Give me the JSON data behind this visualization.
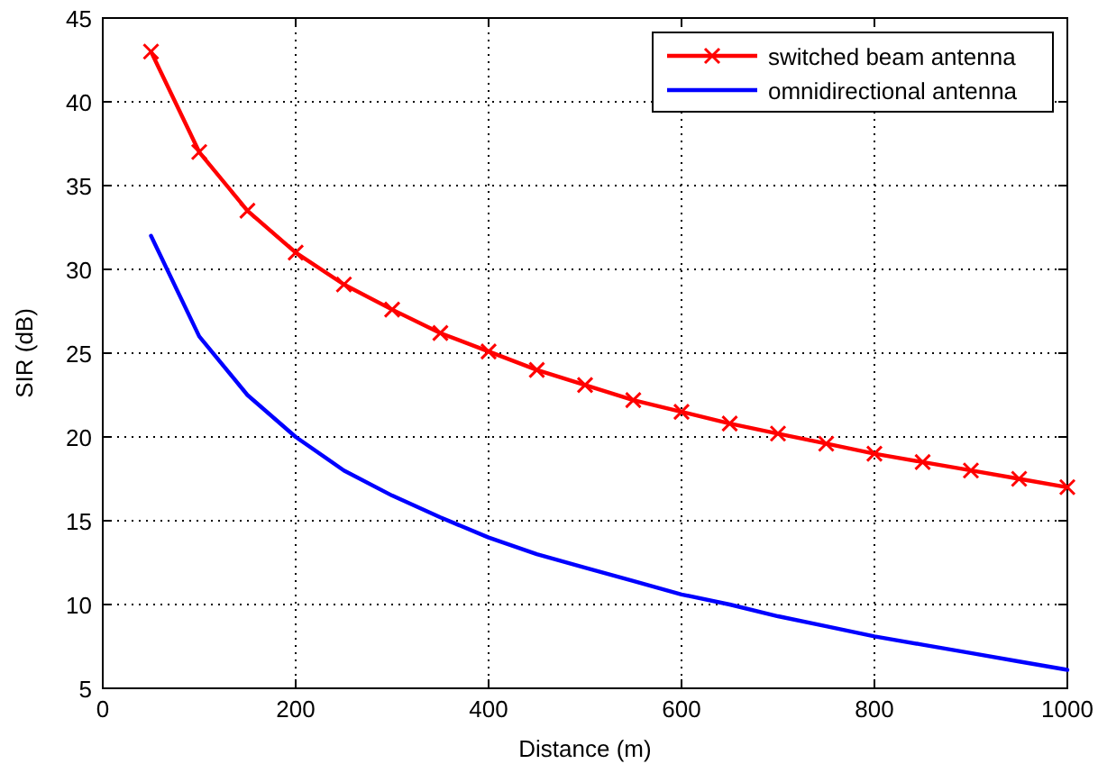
{
  "chart_data": {
    "type": "line",
    "xlabel": "Distance (m)",
    "ylabel": "SIR (dB)",
    "x": [
      50,
      100,
      150,
      200,
      250,
      300,
      350,
      400,
      450,
      500,
      550,
      600,
      650,
      700,
      750,
      800,
      850,
      900,
      950,
      1000
    ],
    "series": [
      {
        "name": "switched beam antenna",
        "color": "#ff0000",
        "marker": "cross",
        "values": [
          43,
          37,
          33.5,
          31,
          29.1,
          27.6,
          26.2,
          25.1,
          24,
          23.1,
          22.2,
          21.5,
          20.8,
          20.2,
          19.6,
          19,
          18.5,
          18,
          17.5,
          17
        ]
      },
      {
        "name": "omnidirectional antenna",
        "color": "#0000ff",
        "marker": "none",
        "values": [
          32,
          26,
          22.5,
          20,
          18,
          16.5,
          15.2,
          14,
          13,
          12.2,
          11.4,
          10.6,
          10,
          9.3,
          8.7,
          8.1,
          7.6,
          7.1,
          6.6,
          6.1
        ]
      }
    ],
    "xlim": [
      0,
      1000
    ],
    "ylim": [
      5,
      45
    ],
    "xticks": [
      0,
      200,
      400,
      600,
      800,
      1000
    ],
    "yticks": [
      5,
      10,
      15,
      20,
      25,
      30,
      35,
      40,
      45
    ],
    "grid": true,
    "legend": "top right",
    "line_style": "solid"
  }
}
